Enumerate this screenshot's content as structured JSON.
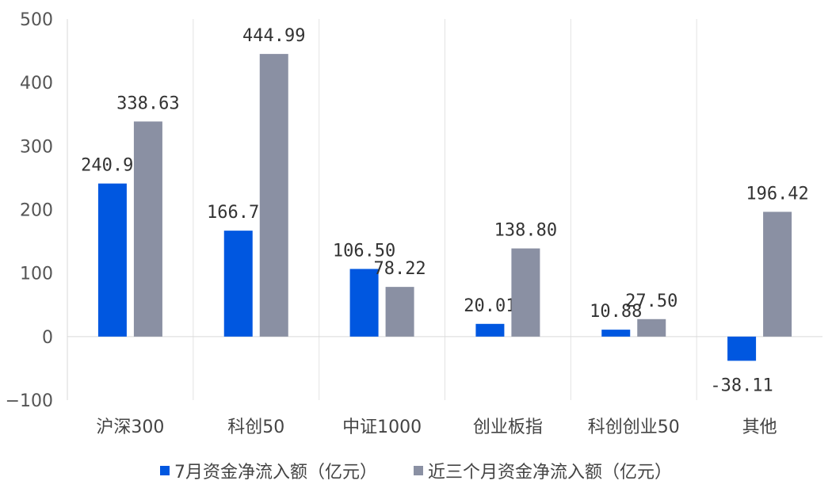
{
  "chart_data": {
    "type": "bar",
    "categories": [
      "沪深300",
      "科创50",
      "中证1000",
      "创业板指",
      "科创创业50",
      "其他"
    ],
    "series": [
      {
        "name": "7月资金净流入额（亿元）",
        "color": "#0057e0",
        "values": [
          240.99,
          166.77,
          106.5,
          20.01,
          10.88,
          -38.11
        ],
        "labels": [
          "240.99",
          "166.77",
          "106.50",
          "20.01",
          "10.88",
          "-38.11"
        ]
      },
      {
        "name": "近三个月资金净流入额（亿元）",
        "color": "#8a90a3",
        "values": [
          338.63,
          444.99,
          78.22,
          138.8,
          27.5,
          196.42
        ],
        "labels": [
          "338.63",
          "444.99",
          "78.22",
          "138.80",
          "27.50",
          "196.42"
        ]
      }
    ],
    "ylim": [
      -100,
      500
    ],
    "yticks": [
      "500",
      "400",
      "300",
      "200",
      "100",
      "0",
      "−100"
    ],
    "ytick_values": [
      500,
      400,
      300,
      200,
      100,
      0,
      -100
    ],
    "grid": "vertical separators",
    "legend_position": "bottom"
  }
}
